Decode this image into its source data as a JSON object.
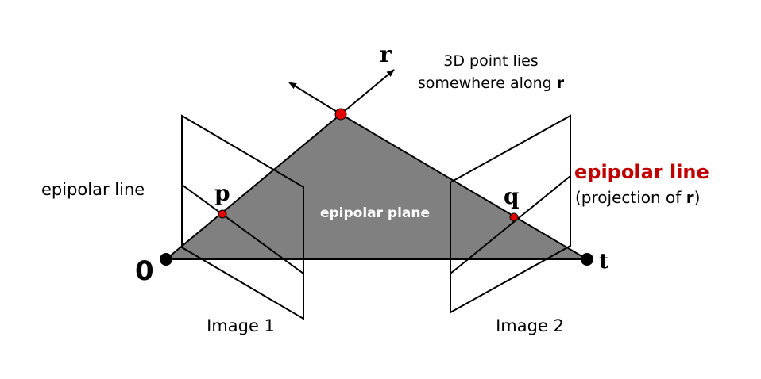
{
  "labels": {
    "ray": "r",
    "ray_caption_line1": "3D point lies",
    "ray_caption_line2_prefix": "somewhere along ",
    "ray_caption_line2_bold": "r",
    "point_p": "p",
    "point_q": "q",
    "left_epipolar_line": "epipolar line",
    "right_epipolar_line": "epipolar line",
    "projection_prefix": "(projection of ",
    "projection_bold": "r",
    "projection_suffix": ")",
    "epipolar_plane": "epipolar plane",
    "origin": "0",
    "translation": "t",
    "image1": "Image 1",
    "image2": "Image 2"
  },
  "colors": {
    "plane_fill": "#808080",
    "point_red": "#e00000",
    "highlight_text": "#c00000",
    "line": "#000000"
  }
}
